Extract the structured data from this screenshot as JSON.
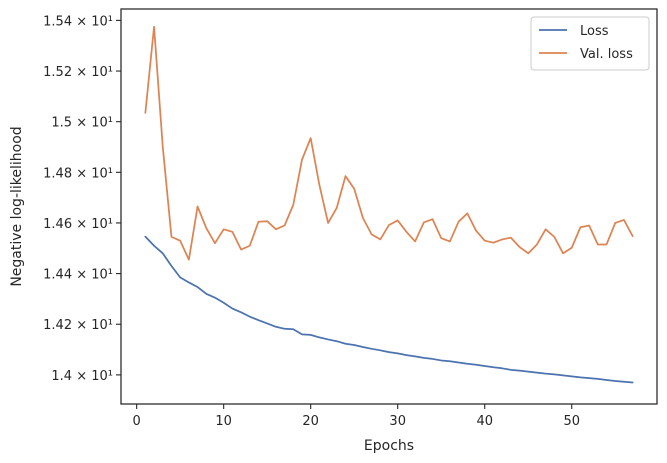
{
  "chart_data": {
    "type": "line",
    "xlabel": "Epochs",
    "ylabel": "Negative log-likelihood",
    "xlim": [
      -1.8,
      59.8
    ],
    "ylim": [
      13.885,
      15.445
    ],
    "xticks": [
      0,
      10,
      20,
      30,
      40,
      50
    ],
    "xtick_labels": [
      "0",
      "10",
      "20",
      "30",
      "40",
      "50"
    ],
    "yticks": [
      14.0,
      14.2,
      14.4,
      14.6,
      14.8,
      15.0,
      15.2,
      15.4
    ],
    "ytick_labels": [
      "1.4 × 10¹",
      "1.42 × 10¹",
      "1.44 × 10¹",
      "1.46 × 10¹",
      "1.48 × 10¹",
      "1.5 × 10¹",
      "1.52 × 10¹",
      "1.54 × 10¹"
    ],
    "grid": false,
    "legend_position": "top-right",
    "x": [
      1,
      2,
      3,
      4,
      5,
      6,
      7,
      8,
      9,
      10,
      11,
      12,
      13,
      14,
      15,
      16,
      17,
      18,
      19,
      20,
      21,
      22,
      23,
      24,
      25,
      26,
      27,
      28,
      29,
      30,
      31,
      32,
      33,
      34,
      35,
      36,
      37,
      38,
      39,
      40,
      41,
      42,
      43,
      44,
      45,
      46,
      47,
      48,
      49,
      50,
      51,
      52,
      53,
      54,
      55,
      56,
      57
    ],
    "series": [
      {
        "name": "Loss",
        "color": "#4c72b0",
        "values": [
          14.546,
          14.51,
          14.48,
          14.43,
          14.385,
          14.365,
          14.347,
          14.32,
          14.305,
          14.285,
          14.262,
          14.247,
          14.23,
          14.216,
          14.203,
          14.19,
          14.182,
          14.18,
          14.16,
          14.158,
          14.148,
          14.14,
          14.133,
          14.123,
          14.118,
          14.11,
          14.103,
          14.097,
          14.09,
          14.085,
          14.078,
          14.073,
          14.067,
          14.063,
          14.057,
          14.054,
          14.049,
          14.044,
          14.04,
          14.035,
          14.03,
          14.026,
          14.02,
          14.017,
          14.013,
          14.009,
          14.005,
          14.002,
          13.998,
          13.994,
          13.99,
          13.987,
          13.984,
          13.98,
          13.976,
          13.973,
          13.97
        ]
      },
      {
        "name": "Val. loss",
        "color": "#dd8452",
        "values": [
          15.035,
          15.375,
          14.9,
          14.545,
          14.53,
          14.455,
          14.665,
          14.58,
          14.52,
          14.575,
          14.565,
          14.495,
          14.51,
          14.605,
          14.607,
          14.575,
          14.59,
          14.672,
          14.85,
          14.935,
          14.75,
          14.6,
          14.66,
          14.785,
          14.735,
          14.62,
          14.555,
          14.535,
          14.592,
          14.61,
          14.565,
          14.527,
          14.602,
          14.615,
          14.54,
          14.527,
          14.605,
          14.638,
          14.57,
          14.53,
          14.522,
          14.535,
          14.542,
          14.505,
          14.48,
          14.515,
          14.575,
          14.545,
          14.48,
          14.502,
          14.583,
          14.59,
          14.515,
          14.515,
          14.6,
          14.612,
          14.548
        ]
      }
    ]
  }
}
